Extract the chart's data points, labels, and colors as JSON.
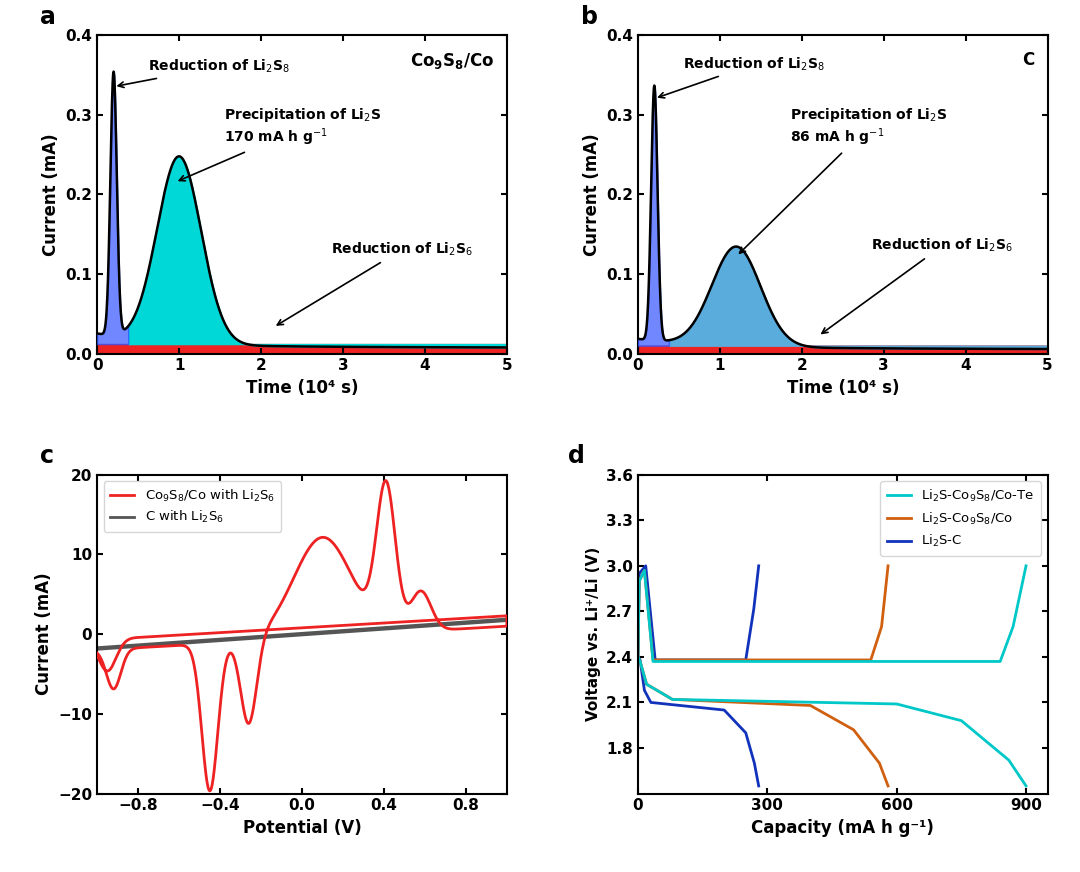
{
  "panel_a": {
    "label": "a",
    "title": "Co₉S₈/Co",
    "xlabel": "Time (10⁴ s)",
    "ylabel": "Current (mA)",
    "ylim": [
      0,
      0.4
    ],
    "xlim": [
      0,
      5
    ],
    "yticks": [
      0.0,
      0.1,
      0.2,
      0.3,
      0.4
    ],
    "xticks": [
      0,
      1,
      2,
      3,
      4,
      5
    ],
    "fill_cyan_color": "#00D8D8",
    "fill_red_color": "#EE2222",
    "fill_blue_color": "#3355FF",
    "line_color": "#000000"
  },
  "panel_b": {
    "label": "b",
    "title": "C",
    "xlabel": "Time (10⁴ s)",
    "ylabel": "Current (mA)",
    "ylim": [
      0,
      0.4
    ],
    "xlim": [
      0,
      5
    ],
    "yticks": [
      0.0,
      0.1,
      0.2,
      0.3,
      0.4
    ],
    "xticks": [
      0,
      1,
      2,
      3,
      4,
      5
    ],
    "fill_cyan_color": "#5AACDC",
    "fill_red_color": "#EE2222",
    "fill_blue_color": "#3355FF",
    "line_color": "#000000"
  },
  "panel_c": {
    "label": "c",
    "xlabel": "Potential (V)",
    "ylabel": "Current (mA)",
    "ylim": [
      -20,
      20
    ],
    "xlim": [
      -1.0,
      1.0
    ],
    "yticks": [
      -20,
      -10,
      0,
      10,
      20
    ],
    "xticks": [
      -0.8,
      -0.4,
      0.0,
      0.4,
      0.8
    ],
    "red_color": "#EE2222",
    "gray_color": "#555555",
    "legend": [
      "Co₉S₈/Co with Li₂S₆",
      "C with Li₂S₆"
    ]
  },
  "panel_d": {
    "label": "d",
    "xlabel": "Capacity (mA h g⁻¹)",
    "ylabel": "Voltage vs. Li⁺/Li (V)",
    "ylim": [
      1.5,
      3.6
    ],
    "xlim": [
      0,
      950
    ],
    "yticks": [
      1.8,
      2.1,
      2.4,
      2.7,
      3.0,
      3.3,
      3.6
    ],
    "xticks": [
      0,
      300,
      600,
      900
    ],
    "cyan_color": "#00C8C8",
    "orange_color": "#D06010",
    "blue_color": "#1133BB",
    "legend": [
      "Li₂S-Co₉S₈/Co-Te",
      "Li₂S-Co₉S₈/Co",
      "Li₂S-C"
    ]
  }
}
